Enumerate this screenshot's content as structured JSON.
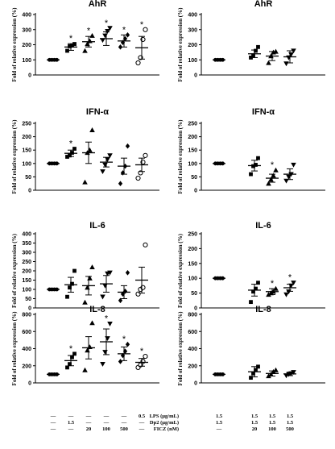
{
  "groups": [
    {
      "x": 1,
      "labels": [
        "—",
        "—",
        "—"
      ]
    },
    {
      "x": 2,
      "labels": [
        "—",
        "1.5",
        "—"
      ]
    },
    {
      "x": 3,
      "labels": [
        "—",
        "—",
        "20"
      ]
    },
    {
      "x": 4,
      "labels": [
        "—",
        "—",
        "100"
      ]
    },
    {
      "x": 5,
      "labels": [
        "—",
        "—",
        "500"
      ]
    },
    {
      "x": 6,
      "labels": [
        "0.5",
        "—",
        "—"
      ]
    }
  ],
  "conditions": {
    "row_labels": [
      "LPS (µg/mL)",
      "Dp2 (µg/mL)",
      "FICZ (nM)"
    ],
    "left": [
      [
        "—",
        "—",
        "—"
      ],
      [
        "—",
        "1.5",
        "—"
      ],
      [
        "—",
        "—",
        "20"
      ],
      [
        "—",
        "—",
        "100"
      ],
      [
        "—",
        "—",
        "500"
      ],
      [
        "0.5",
        "—",
        "—"
      ]
    ],
    "right": [
      [
        "1.5",
        "1.5",
        "—"
      ],
      [
        "1.5",
        "1.5",
        "20"
      ],
      [
        "1.5",
        "1.5",
        "100"
      ],
      [
        "1.5",
        "1.5",
        "500"
      ]
    ]
  },
  "chart_data": [
    {
      "type": "scatter",
      "title": "AhR",
      "ylabel": "Fold of relative expression (%)",
      "ylim": [
        0,
        400
      ],
      "yticks": [
        0,
        100,
        200,
        300,
        400
      ],
      "x": [
        1,
        2,
        3,
        4,
        5,
        6
      ],
      "series": [
        {
          "marker": "circle-filled",
          "values": [
            100,
            100,
            100,
            100
          ],
          "mean": 100,
          "sem": 0
        },
        {
          "marker": "square",
          "values": [
            160,
            190,
            195,
            205
          ],
          "mean": 185,
          "sem": 22,
          "star": true
        },
        {
          "marker": "triangle-up",
          "values": [
            160,
            205,
            225,
            260
          ],
          "mean": 220,
          "sem": 35,
          "star": true
        },
        {
          "marker": "triangle-down",
          "values": [
            230,
            260,
            290,
            310
          ],
          "mean": 240,
          "sem": 45,
          "star": true
        },
        {
          "marker": "diamond",
          "values": [
            185,
            215,
            240,
            265
          ],
          "mean": 225,
          "sem": 40,
          "star": true
        },
        {
          "marker": "circle-open",
          "values": [
            80,
            115,
            235,
            300
          ],
          "mean": 180,
          "sem": 75,
          "star": true
        }
      ]
    },
    {
      "type": "scatter",
      "title": "AhR",
      "ylabel": "Fold of relative expression (%)",
      "ylim": [
        0,
        400
      ],
      "yticks": [
        0,
        100,
        200,
        300,
        400
      ],
      "x": [
        1,
        3,
        4,
        5
      ],
      "series": [
        {
          "marker": "circle-filled",
          "values": [
            100,
            100,
            100,
            100
          ],
          "mean": 100,
          "sem": 0
        },
        {
          "marker": "square",
          "values": [
            115,
            130,
            160,
            185
          ],
          "mean": 140,
          "sem": 25
        },
        {
          "marker": "triangle-up",
          "values": [
            80,
            125,
            150,
            155
          ],
          "mean": 125,
          "sem": 30
        },
        {
          "marker": "triangle-down",
          "values": [
            75,
            115,
            135,
            160
          ],
          "mean": 120,
          "sem": 40
        }
      ]
    },
    {
      "type": "scatter",
      "title": "IFN-α",
      "ylabel": "Fold of relative expression (%)",
      "ylim": [
        0,
        250
      ],
      "yticks": [
        0,
        50,
        100,
        150,
        200,
        250
      ],
      "x": [
        1,
        2,
        3,
        4,
        5,
        6
      ],
      "series": [
        {
          "marker": "circle-filled",
          "values": [
            100,
            100,
            100,
            100
          ],
          "mean": 100,
          "sem": 0
        },
        {
          "marker": "square",
          "values": [
            125,
            130,
            140,
            155
          ],
          "mean": 138,
          "sem": 12,
          "star": true
        },
        {
          "marker": "triangle-up",
          "values": [
            30,
            140,
            150,
            225
          ],
          "mean": 140,
          "sem": 40
        },
        {
          "marker": "triangle-down",
          "values": [
            70,
            95,
            115,
            130
          ],
          "mean": 105,
          "sem": 18
        },
        {
          "marker": "diamond",
          "values": [
            25,
            65,
            90,
            165
          ],
          "mean": 90,
          "sem": 30
        },
        {
          "marker": "circle-open",
          "values": [
            45,
            65,
            105,
            130
          ],
          "mean": 95,
          "sem": 25
        }
      ]
    },
    {
      "type": "scatter",
      "title": "IFN-α",
      "ylabel": "Fold of relative expression (%)",
      "ylim": [
        0,
        250
      ],
      "yticks": [
        0,
        50,
        100,
        150,
        200,
        250
      ],
      "x": [
        1,
        3,
        4,
        5
      ],
      "series": [
        {
          "marker": "circle-filled",
          "values": [
            100,
            100,
            100,
            100
          ],
          "mean": 100,
          "sem": 0
        },
        {
          "marker": "square",
          "values": [
            60,
            90,
            95,
            120
          ],
          "mean": 92,
          "sem": 20
        },
        {
          "marker": "triangle-up",
          "values": [
            25,
            40,
            55,
            75
          ],
          "mean": 45,
          "sem": 15,
          "star": true
        },
        {
          "marker": "triangle-down",
          "values": [
            35,
            50,
            60,
            95
          ],
          "mean": 60,
          "sem": 20
        }
      ]
    },
    {
      "type": "scatter",
      "title": "IL-6",
      "ylabel": "Fold of relative expression (%)",
      "ylim": [
        0,
        400
      ],
      "yticks": [
        0,
        50,
        100,
        150,
        200,
        250,
        300,
        350,
        400
      ],
      "x": [
        1,
        2,
        3,
        4,
        5,
        6
      ],
      "series": [
        {
          "marker": "circle-filled",
          "values": [
            100,
            100,
            100,
            100
          ],
          "mean": 100,
          "sem": 0
        },
        {
          "marker": "square",
          "values": [
            60,
            110,
            130,
            200
          ],
          "mean": 125,
          "sem": 40
        },
        {
          "marker": "triangle-up",
          "values": [
            30,
            110,
            160,
            220
          ],
          "mean": 120,
          "sem": 50
        },
        {
          "marker": "triangle-down",
          "values": [
            60,
            120,
            185,
            190
          ],
          "mean": 130,
          "sem": 45
        },
        {
          "marker": "diamond",
          "values": [
            40,
            75,
            90,
            190
          ],
          "mean": 85,
          "sem": 35
        },
        {
          "marker": "circle-open",
          "values": [
            75,
            100,
            110,
            340
          ],
          "mean": 150,
          "sem": 70
        }
      ]
    },
    {
      "type": "scatter",
      "title": "IL-6",
      "ylabel": "Fold of relative expression (%)",
      "ylim": [
        0,
        250
      ],
      "yticks": [
        0,
        50,
        100,
        150,
        200,
        250
      ],
      "x": [
        1,
        3,
        4,
        5
      ],
      "series": [
        {
          "marker": "circle-filled",
          "values": [
            100,
            100,
            100,
            100
          ],
          "mean": 100,
          "sem": 0
        },
        {
          "marker": "square",
          "values": [
            20,
            55,
            65,
            85
          ],
          "mean": 60,
          "sem": 20
        },
        {
          "marker": "triangle-up",
          "values": [
            45,
            50,
            55,
            65
          ],
          "mean": 55,
          "sem": 10,
          "star": true
        },
        {
          "marker": "triangle-down",
          "values": [
            45,
            55,
            75,
            85
          ],
          "mean": 68,
          "sem": 12,
          "star": true
        }
      ]
    },
    {
      "type": "scatter",
      "title": "IL-8",
      "ylabel": "Fold of relative expression (%)",
      "ylim": [
        0,
        800
      ],
      "yticks": [
        0,
        200,
        400,
        600,
        800
      ],
      "x": [
        1,
        2,
        3,
        4,
        5,
        6
      ],
      "series": [
        {
          "marker": "circle-filled",
          "values": [
            100,
            100,
            100,
            100
          ],
          "mean": 100,
          "sem": 0
        },
        {
          "marker": "square",
          "values": [
            180,
            220,
            300,
            340
          ],
          "mean": 260,
          "sem": 60,
          "star": true
        },
        {
          "marker": "triangle-up",
          "values": [
            150,
            380,
            420,
            700
          ],
          "mean": 410,
          "sem": 130
        },
        {
          "marker": "triangle-down",
          "values": [
            220,
            360,
            520,
            690
          ],
          "mean": 480,
          "sem": 150,
          "star": true
        },
        {
          "marker": "diamond",
          "values": [
            250,
            320,
            370,
            450
          ],
          "mean": 340,
          "sem": 80,
          "star": true
        },
        {
          "marker": "circle-open",
          "values": [
            180,
            210,
            250,
            310
          ],
          "mean": 240,
          "sem": 45,
          "star": true
        }
      ]
    },
    {
      "type": "scatter",
      "title": "IL-8",
      "ylabel": "Fold of relative expression (%)",
      "ylim": [
        0,
        800
      ],
      "yticks": [
        0,
        200,
        400,
        600,
        800
      ],
      "x": [
        1,
        3,
        4,
        5
      ],
      "series": [
        {
          "marker": "circle-filled",
          "values": [
            100,
            100,
            100,
            100
          ],
          "mean": 100,
          "sem": 0
        },
        {
          "marker": "square",
          "values": [
            60,
            110,
            150,
            190
          ],
          "mean": 130,
          "sem": 60
        },
        {
          "marker": "triangle-up",
          "values": [
            80,
            100,
            130,
            150
          ],
          "mean": 110,
          "sem": 30
        },
        {
          "marker": "triangle-down",
          "values": [
            85,
            100,
            110,
            125
          ],
          "mean": 105,
          "sem": 20
        }
      ]
    }
  ]
}
